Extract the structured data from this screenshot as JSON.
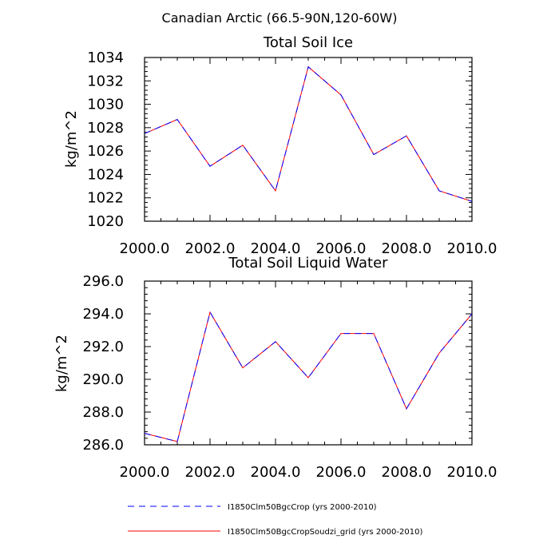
{
  "figure": {
    "suptitle": "Canadian Arctic (66.5-90N,120-60W)"
  },
  "legend": [
    {
      "label": "I1850Clm50BgcCrop (yrs 2000-2010)",
      "color": "#0000ff",
      "style": "dashed"
    },
    {
      "label": "I1850Clm50BgcCropSoudzi_grid (yrs 2000-2010)",
      "color": "#ff0000",
      "style": "solid"
    }
  ],
  "chart_data": [
    {
      "type": "line",
      "title": "Total Soil Ice",
      "xlabel": "",
      "ylabel": "kg/m^2",
      "xlim": [
        2000,
        2010
      ],
      "ylim": [
        1020,
        1034
      ],
      "x_ticks": [
        "2000.0",
        "2002.0",
        "2004.0",
        "2006.0",
        "2008.0",
        "2010.0"
      ],
      "y_ticks": [
        "1020",
        "1022",
        "1024",
        "1026",
        "1028",
        "1030",
        "1032",
        "1034"
      ],
      "x": [
        2000,
        2001,
        2002,
        2003,
        2004,
        2005,
        2006,
        2007,
        2008,
        2009,
        2010
      ],
      "series": [
        {
          "name": "I1850Clm50BgcCrop (yrs 2000-2010)",
          "values": [
            1027.5,
            1028.7,
            1024.7,
            1026.5,
            1022.6,
            1033.2,
            1030.8,
            1025.7,
            1027.3,
            1022.6,
            1021.7
          ]
        },
        {
          "name": "I1850Clm50BgcCropSoudzi_grid (yrs 2000-2010)",
          "values": [
            1027.5,
            1028.7,
            1024.7,
            1026.5,
            1022.6,
            1033.2,
            1030.8,
            1025.7,
            1027.3,
            1022.6,
            1021.7
          ]
        }
      ]
    },
    {
      "type": "line",
      "title": "Total Soil Liquid Water",
      "xlabel": "",
      "ylabel": "kg/m^2",
      "xlim": [
        2000,
        2010
      ],
      "ylim": [
        286,
        296
      ],
      "x_ticks": [
        "2000.0",
        "2002.0",
        "2004.0",
        "2006.0",
        "2008.0",
        "2010.0"
      ],
      "y_ticks": [
        "286.0",
        "288.0",
        "290.0",
        "292.0",
        "294.0",
        "296.0"
      ],
      "x": [
        2000,
        2001,
        2002,
        2003,
        2004,
        2005,
        2006,
        2007,
        2008,
        2009,
        2010
      ],
      "series": [
        {
          "name": "I1850Clm50BgcCrop (yrs 2000-2010)",
          "values": [
            286.7,
            286.2,
            294.1,
            290.7,
            292.3,
            290.1,
            292.8,
            292.8,
            288.2,
            291.6,
            294.0
          ]
        },
        {
          "name": "I1850Clm50BgcCropSoudzi_grid (yrs 2000-2010)",
          "values": [
            286.7,
            286.2,
            294.1,
            290.7,
            292.3,
            290.1,
            292.8,
            292.8,
            288.2,
            291.6,
            294.0
          ]
        }
      ]
    }
  ]
}
